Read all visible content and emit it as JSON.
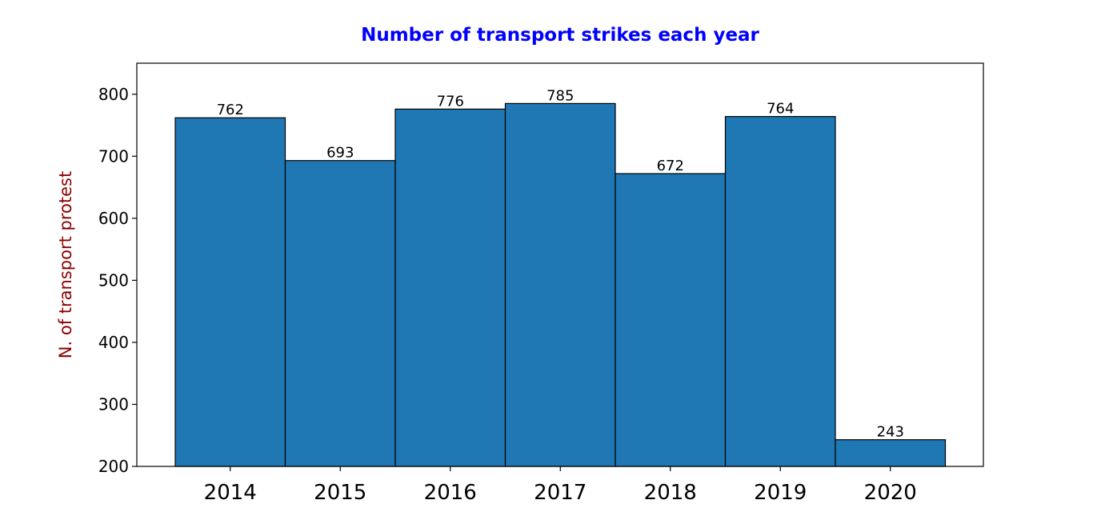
{
  "chart_data": {
    "type": "bar",
    "title": "Number of transport strikes each year",
    "xlabel": "",
    "ylabel": "N. of transport protest",
    "categories": [
      "2014",
      "2015",
      "2016",
      "2017",
      "2018",
      "2019",
      "2020"
    ],
    "values": [
      762,
      693,
      776,
      785,
      672,
      764,
      243
    ],
    "value_labels": [
      "762",
      "693",
      "776",
      "785",
      "672",
      "764",
      "243"
    ],
    "ylim": [
      200,
      850
    ],
    "yticks": [
      200,
      300,
      400,
      500,
      600,
      700,
      800
    ],
    "ytick_labels": [
      "200",
      "300",
      "400",
      "500",
      "600",
      "700",
      "800"
    ],
    "grid": false,
    "legend": "none",
    "colors": {
      "bar_fill": "#1f77b4",
      "bar_edge": "#000000",
      "title": "#0000ff",
      "ylabel": "#8b0000"
    }
  }
}
